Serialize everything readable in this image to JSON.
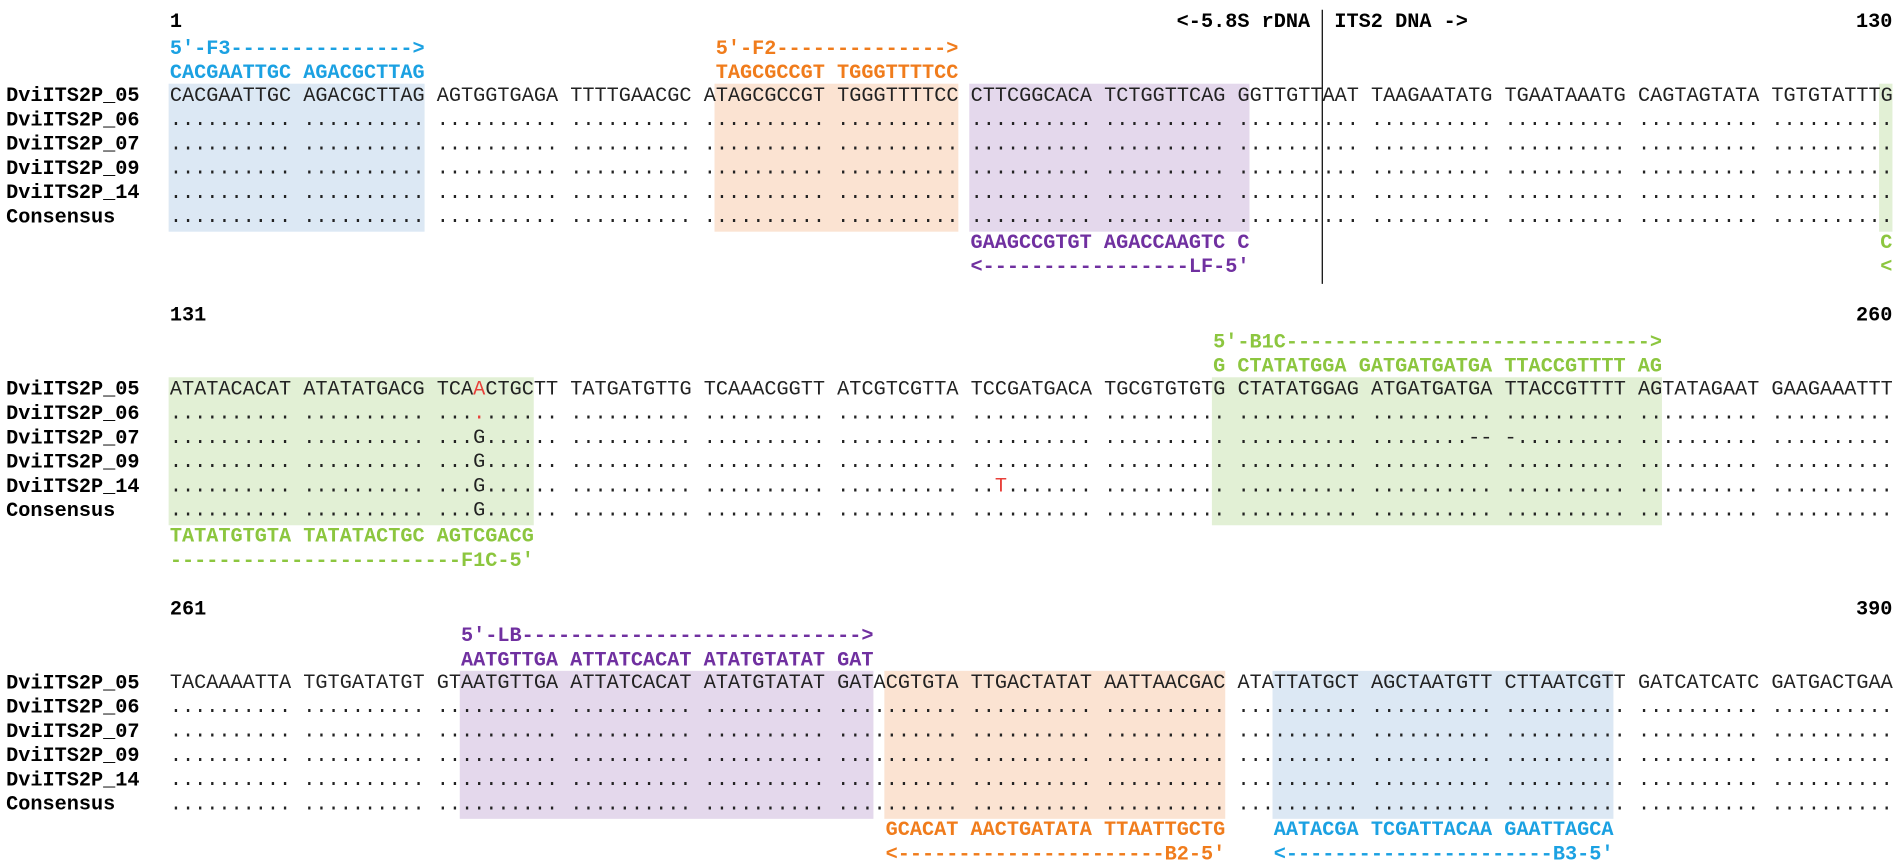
{
  "blocks": [
    {
      "start": 1,
      "end": 130,
      "boundary": {
        "left": "<-5.8S rDNA",
        "right": "ITS2 DNA ->"
      },
      "above": [
        {
          "label": "5′-F3--------------->",
          "sequence": "CACGAATTGC AGACGCTTAG",
          "color": "#1ba1e2"
        },
        {
          "label": "5′-F2-------------->",
          "sequence": "TAGCGCCGT TGGGTTTTCC",
          "color": "#f07c1c"
        }
      ],
      "rows": [
        {
          "name": "DviITS2P_05",
          "segments": [
            {
              "text": "CACGAATTGC AGACGCTTAG AGTGGTGAGA TTTTGAACGC ATAGCGCCGT TGGGTTTTCC CTTCGGCACA TCTGGTTCAG GGTTGTTAAT TAAGAATATG TGAATAAATG CAGTAGTATA TGTGTATTTG"
            }
          ]
        },
        {
          "name": "DviITS2P_06",
          "segments": [
            {
              "text": ".......... .......... .......... .......... .......... .......... .......... .......... .......... .......... .......... .......... .........."
            }
          ]
        },
        {
          "name": "DviITS2P_07",
          "segments": [
            {
              "text": ".......... .......... .......... .......... .......... .......... .......... .......... .......... .......... .......... .......... .........."
            }
          ]
        },
        {
          "name": "DviITS2P_09",
          "segments": [
            {
              "text": ".......... .......... .......... .......... .......... .......... .......... .......... .......... .......... .......... .......... .........."
            }
          ]
        },
        {
          "name": "DviITS2P_14",
          "segments": [
            {
              "text": ".......... .......... .......... .......... .......... .......... .......... .......... .......... .......... .......... .......... .........."
            }
          ]
        },
        {
          "name": "Consensus",
          "segments": [
            {
              "text": ".......... .......... .......... .......... .......... .......... .......... .......... .......... .......... .......... .......... .........."
            }
          ]
        }
      ],
      "below": [
        {
          "sequence": "GAAGCCGTGT AGACCAAGTC C",
          "label": "<-----------------LF-5′",
          "color": "#7030a0"
        },
        {
          "sequence": "C",
          "label": "<",
          "color": "#8cc63f"
        }
      ]
    },
    {
      "start": 131,
      "end": 260,
      "above": [
        {
          "label": "5′-B1C------------------------------>",
          "sequence": "G CTATATGGA GATGATGATGA TTACCGTTTT AG",
          "color": "#8cc63f"
        }
      ],
      "rows": [
        {
          "name": "DviITS2P_05",
          "segments": [
            {
              "text": "ATATACACAT ATATATGACG TCA"
            },
            {
              "text": "A",
              "color": "#e8403a"
            },
            {
              "text": "CTGCTT TATGATGTTG TCAAACGGTT ATCGTCGTTA TCCGATGACA TGCGTGTGTG CTATATGGAG ATGATGATGA TTACCGTTTT AGTATAGAAT GAAGAAATTT"
            }
          ]
        },
        {
          "name": "DviITS2P_06",
          "segments": [
            {
              "text": ".......... .......... ..."
            },
            {
              "text": ".",
              "color": "#e8403a"
            },
            {
              "text": "...... .......... .......... .......... .......... .......... .......... .......... .......... .......... .........."
            }
          ]
        },
        {
          "name": "DviITS2P_07",
          "segments": [
            {
              "text": ".......... .......... ...G...... .......... .......... .......... .......... .......... .......... ........-- -......... .......... .........."
            }
          ]
        },
        {
          "name": "DviITS2P_09",
          "segments": [
            {
              "text": ".......... .......... ...G...... .......... .......... .......... .......... .......... .......... .......... .......... .......... .........."
            }
          ]
        },
        {
          "name": "DviITS2P_14",
          "segments": [
            {
              "text": ".......... .......... ...G...... .......... .......... .......... .."
            },
            {
              "text": "T",
              "color": "#e8403a"
            },
            {
              "text": "....... .......... .......... .......... .......... .......... .........."
            }
          ]
        },
        {
          "name": "Consensus",
          "segments": [
            {
              "text": ".......... .......... ...G...... .......... .......... .......... .......... .......... .......... .......... .......... .......... .........."
            }
          ]
        }
      ],
      "below": [
        {
          "sequence": "TATATGTGTA TATATACTGC AGTCGACG",
          "label": "------------------------F1C-5′",
          "color": "#8cc63f"
        }
      ]
    },
    {
      "start": 261,
      "end": 390,
      "above": [
        {
          "label": "5′-LB---------------------------->",
          "sequence": "AATGTTGA ATTATCACAT ATATGTATAT GAT",
          "color": "#7030a0"
        }
      ],
      "rows": [
        {
          "name": "DviITS2P_05",
          "segments": [
            {
              "text": "TACAAAATTA TGTGATATGT GTAATGTTGA ATTATCACAT ATATGTATAT GATACGTGTA TTGACTATAT AATTAACGAC ATATTATGCT AGCTAATGTT CTTAATCGTT GATCATCATC GATGACTGAA"
            }
          ]
        },
        {
          "name": "DviITS2P_06",
          "segments": [
            {
              "text": ".......... .......... .......... .......... .......... .......... .......... .......... .......... .......... .......... .......... .........."
            }
          ]
        },
        {
          "name": "DviITS2P_07",
          "segments": [
            {
              "text": ".......... .......... .......... .......... .......... .......... .......... .......... .......... .......... .......... .......... .........."
            }
          ]
        },
        {
          "name": "DviITS2P_09",
          "segments": [
            {
              "text": ".......... .......... .......... .......... .......... .......... .......... .......... .......... .......... .......... .......... .........."
            }
          ]
        },
        {
          "name": "DviITS2P_14",
          "segments": [
            {
              "text": ".......... .......... .......... .......... .......... .......... .......... .......... .......... .......... .......... .......... .........."
            }
          ]
        },
        {
          "name": "Consensus",
          "segments": [
            {
              "text": ".......... .......... .......... .......... .......... .......... .......... .......... .......... .......... .......... .......... .........."
            }
          ]
        }
      ],
      "below": [
        {
          "sequence": "GCACAT AACTGATATA TTAATTGCTG",
          "label": "<----------------------B2-5′",
          "color": "#f07c1c"
        },
        {
          "sequence": "AATACGA TCGATTACAA GAATTAGCA",
          "label": "<----------------------B3-5′",
          "color": "#1ba1e2"
        }
      ]
    }
  ]
}
